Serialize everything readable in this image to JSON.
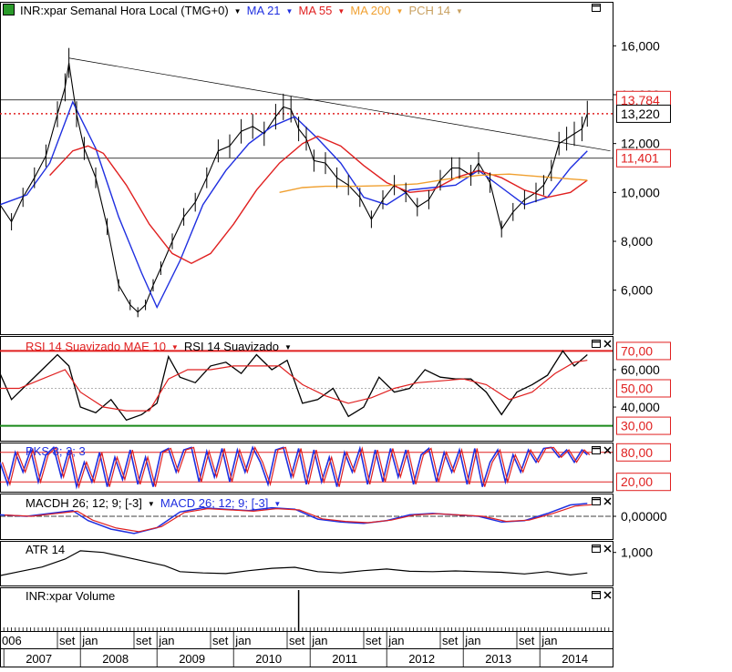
{
  "main_panel": {
    "legend": [
      {
        "text": "INR:xpar Semanal Hora Local (TMG+0)",
        "color": "#000000"
      },
      {
        "text": "MA 21",
        "color": "#1f2fe0"
      },
      {
        "text": "MA 55",
        "color": "#e02020"
      },
      {
        "text": "MA 200",
        "color": "#f0a030"
      },
      {
        "text": "PCH 14",
        "color": "#c8a060"
      }
    ],
    "price_ticks": [
      "16,000",
      "14,000",
      "12,000",
      "10,000",
      "8,000",
      "6,000"
    ],
    "price_tick_values": [
      16000,
      14000,
      12000,
      10000,
      8000,
      6000
    ],
    "boxed_labels": [
      {
        "text": "13,784",
        "value": 13784,
        "color": "#e02020"
      },
      {
        "text": "13,220",
        "value": 13220,
        "color": "#000000"
      },
      {
        "text": "11,401",
        "value": 11401,
        "color": "#e02020"
      }
    ],
    "hlines": [
      13784,
      11401
    ],
    "dotted_line": 13220,
    "trendline": {
      "from": {
        "x": 2007.85,
        "y": 15500
      },
      "to": {
        "x": 2014.92,
        "y": 11700
      }
    }
  },
  "rsi_panel": {
    "legend": [
      {
        "text": "RSI 14 Suavizado MAE 10",
        "color": "#e02020"
      },
      {
        "text": "RSI 14 Suavizado",
        "color": "#000000"
      }
    ],
    "ticks": [
      "70,00",
      "60,000",
      "50,00",
      "40,000",
      "30,00"
    ],
    "tick_values": [
      70,
      60,
      50,
      40,
      30
    ],
    "boxed_ticks": [
      true,
      false,
      true,
      false,
      true
    ]
  },
  "stoch_panel": {
    "legend": {
      "text": "PKS 8; 3; 3",
      "color": "#1f2fe0"
    },
    "ticks": [
      "80,00",
      "20,00"
    ],
    "tick_values": [
      80,
      20
    ]
  },
  "macd_panel": {
    "legend": [
      {
        "text": "MACDH 26; 12; 9; [-3]",
        "color": "#000000"
      },
      {
        "text": "MACD 26; 12; 9; [-3]",
        "color": "#1f2fe0"
      }
    ],
    "ticks": [
      "0,00000"
    ]
  },
  "atr_panel": {
    "legend": {
      "text": "ATR 14",
      "color": "#000000"
    },
    "ticks": [
      "1,000"
    ]
  },
  "volume_panel": {
    "legend": {
      "text": "INR:xpar Volume",
      "color": "#000000"
    }
  },
  "time_axis": {
    "month_labels": [
      {
        "text": "006",
        "x": 2006.95
      },
      {
        "text": "set",
        "x": 2007.7
      },
      {
        "text": "jan",
        "x": 2008.0
      },
      {
        "text": "set",
        "x": 2008.7
      },
      {
        "text": "jan",
        "x": 2009.0
      },
      {
        "text": "set",
        "x": 2009.7
      },
      {
        "text": "jan",
        "x": 2010.0
      },
      {
        "text": "set",
        "x": 2010.7
      },
      {
        "text": "jan",
        "x": 2011.0
      },
      {
        "text": "set",
        "x": 2011.7
      },
      {
        "text": "jan",
        "x": 2012.0
      },
      {
        "text": "set",
        "x": 2012.7
      },
      {
        "text": "jan",
        "x": 2013.0
      },
      {
        "text": "set",
        "x": 2013.7
      },
      {
        "text": "jan",
        "x": 2014.0
      }
    ],
    "year_labels": [
      {
        "text": "2007",
        "x": 2007.0
      },
      {
        "text": "2008",
        "x": 2008.0
      },
      {
        "text": "2009",
        "x": 2009.0
      },
      {
        "text": "2010",
        "x": 2010.0
      },
      {
        "text": "2011",
        "x": 2011.0
      },
      {
        "text": "2012",
        "x": 2012.0
      },
      {
        "text": "2013",
        "x": 2013.0
      },
      {
        "text": "2014",
        "x": 2014.0
      }
    ]
  },
  "icons": {
    "maximize": "maximize-icon",
    "close": "close-icon"
  },
  "chart_data": {
    "type": "line",
    "title": "INR:xpar Semanal Hora Local (TMG+0)",
    "xlabel": "",
    "ylabel": "",
    "xlim": [
      2006.95,
      2014.95
    ],
    "ylim": [
      4200,
      17800
    ],
    "grid": false,
    "legend_placement": "top-left",
    "series": [
      {
        "name": "INR:xpar",
        "color": "#000000",
        "x": [
          2006.95,
          2007.1,
          2007.25,
          2007.4,
          2007.55,
          2007.7,
          2007.8,
          2007.85,
          2007.95,
          2008.05,
          2008.2,
          2008.35,
          2008.5,
          2008.65,
          2008.75,
          2008.85,
          2008.95,
          2009.05,
          2009.2,
          2009.35,
          2009.5,
          2009.65,
          2009.8,
          2009.95,
          2010.1,
          2010.25,
          2010.4,
          2010.55,
          2010.65,
          2010.75,
          2010.85,
          2010.95,
          2011.05,
          2011.2,
          2011.35,
          2011.5,
          2011.65,
          2011.8,
          2011.95,
          2012.1,
          2012.25,
          2012.4,
          2012.55,
          2012.7,
          2012.85,
          2012.95,
          2013.1,
          2013.2,
          2013.35,
          2013.5,
          2013.65,
          2013.8,
          2013.95,
          2014.05,
          2014.15,
          2014.25,
          2014.35,
          2014.45,
          2014.55,
          2014.62
        ],
        "y": [
          9500,
          8800,
          9800,
          10600,
          11500,
          13200,
          14300,
          15300,
          13200,
          11800,
          10600,
          8600,
          6200,
          5400,
          5100,
          5400,
          6200,
          6900,
          8000,
          9000,
          9600,
          10600,
          11700,
          11900,
          12500,
          12700,
          12400,
          13100,
          13500,
          13400,
          12600,
          12200,
          11300,
          11200,
          10600,
          10300,
          9800,
          8900,
          9700,
          10300,
          10000,
          9400,
          9700,
          10500,
          11000,
          11000,
          10700,
          11200,
          10400,
          8500,
          9200,
          9700,
          10000,
          10300,
          10900,
          12000,
          12200,
          12400,
          12600,
          13220
        ]
      },
      {
        "name": "MA 21",
        "color": "#1f2fe0",
        "x": [
          2006.95,
          2007.3,
          2007.6,
          2007.9,
          2008.2,
          2008.5,
          2008.8,
          2009.0,
          2009.3,
          2009.6,
          2009.9,
          2010.2,
          2010.5,
          2010.8,
          2011.1,
          2011.4,
          2011.7,
          2012.0,
          2012.3,
          2012.6,
          2012.9,
          2013.2,
          2013.5,
          2013.8,
          2014.1,
          2014.4,
          2014.62
        ],
        "y": [
          9500,
          9900,
          11200,
          13700,
          11800,
          9000,
          6700,
          5300,
          7200,
          9500,
          10900,
          12000,
          12700,
          13100,
          12200,
          11200,
          9800,
          9500,
          10100,
          10200,
          10300,
          10900,
          10200,
          9500,
          9800,
          11000,
          11700
        ]
      },
      {
        "name": "MA 55",
        "color": "#e02020",
        "x": [
          2007.6,
          2007.9,
          2008.1,
          2008.3,
          2008.6,
          2008.9,
          2009.2,
          2009.45,
          2009.7,
          2010.0,
          2010.3,
          2010.6,
          2010.9,
          2011.1,
          2011.4,
          2011.7,
          2012.0,
          2012.3,
          2012.6,
          2012.9,
          2013.2,
          2013.5,
          2013.8,
          2014.1,
          2014.4,
          2014.62
        ],
        "y": [
          10700,
          11700,
          11900,
          11600,
          10300,
          8700,
          7500,
          7100,
          7500,
          8700,
          10100,
          11200,
          12000,
          12300,
          11900,
          11100,
          10400,
          10000,
          10100,
          10600,
          10900,
          10600,
          10100,
          9800,
          10000,
          10500
        ]
      },
      {
        "name": "MA 200",
        "color": "#f0a030",
        "x": [
          2010.6,
          2010.9,
          2011.2,
          2011.6,
          2012.0,
          2012.4,
          2012.8,
          2013.2,
          2013.6,
          2014.0,
          2014.4,
          2014.62
        ],
        "y": [
          10000,
          10200,
          10250,
          10250,
          10280,
          10350,
          10550,
          10700,
          10750,
          10650,
          10550,
          10500
        ]
      }
    ],
    "indicators": {
      "rsi": {
        "x": [
          2006.95,
          2007.1,
          2007.3,
          2007.5,
          2007.7,
          2007.85,
          2008.0,
          2008.2,
          2008.4,
          2008.6,
          2008.8,
          2009.0,
          2009.15,
          2009.3,
          2009.5,
          2009.7,
          2009.9,
          2010.1,
          2010.3,
          2010.5,
          2010.7,
          2010.9,
          2011.1,
          2011.3,
          2011.5,
          2011.7,
          2011.9,
          2012.1,
          2012.3,
          2012.5,
          2012.7,
          2012.9,
          2013.1,
          2013.3,
          2013.5,
          2013.7,
          2013.9,
          2014.1,
          2014.3,
          2014.45,
          2014.62
        ],
        "y": [
          58,
          44,
          52,
          60,
          68,
          62,
          40,
          37,
          44,
          33,
          36,
          42,
          67,
          56,
          53,
          62,
          64,
          58,
          68,
          60,
          65,
          42,
          44,
          50,
          35,
          40,
          56,
          48,
          50,
          60,
          56,
          55,
          55,
          48,
          36,
          48,
          52,
          57,
          70,
          62,
          68
        ]
      },
      "rsi_mae10": {
        "x": [
          2006.95,
          2007.2,
          2007.5,
          2007.8,
          2008.0,
          2008.3,
          2008.6,
          2008.9,
          2009.15,
          2009.4,
          2009.7,
          2010.0,
          2010.3,
          2010.6,
          2010.9,
          2011.2,
          2011.5,
          2011.8,
          2012.1,
          2012.4,
          2012.7,
          2013.0,
          2013.3,
          2013.6,
          2013.9,
          2014.2,
          2014.45,
          2014.62
        ],
        "y": [
          50,
          50,
          55,
          60,
          48,
          40,
          38,
          38,
          55,
          60,
          60,
          62,
          62,
          62,
          52,
          46,
          42,
          45,
          50,
          53,
          54,
          55,
          52,
          44,
          48,
          58,
          64,
          65
        ]
      },
      "stoch": {
        "x": [
          2006.95,
          2007.05,
          2007.15,
          2007.25,
          2007.35,
          2007.45,
          2007.55,
          2007.65,
          2007.75,
          2007.85,
          2007.95,
          2008.05,
          2008.15,
          2008.25,
          2008.35,
          2008.45,
          2008.55,
          2008.65,
          2008.75,
          2008.85,
          2008.95,
          2009.05,
          2009.15,
          2009.25,
          2009.35,
          2009.45,
          2009.55,
          2009.65,
          2009.75,
          2009.85,
          2009.95,
          2010.05,
          2010.15,
          2010.25,
          2010.35,
          2010.45,
          2010.55,
          2010.65,
          2010.75,
          2010.85,
          2010.95,
          2011.05,
          2011.15,
          2011.25,
          2011.35,
          2011.45,
          2011.55,
          2011.65,
          2011.75,
          2011.85,
          2011.95,
          2012.05,
          2012.15,
          2012.25,
          2012.35,
          2012.45,
          2012.55,
          2012.65,
          2012.75,
          2012.85,
          2012.95,
          2013.05,
          2013.15,
          2013.25,
          2013.35,
          2013.45,
          2013.55,
          2013.65,
          2013.75,
          2013.85,
          2013.95,
          2014.05,
          2014.15,
          2014.25,
          2014.35,
          2014.45,
          2014.55,
          2014.62
        ],
        "y": [
          60,
          15,
          80,
          40,
          85,
          20,
          75,
          90,
          30,
          85,
          10,
          60,
          20,
          80,
          10,
          70,
          25,
          85,
          15,
          70,
          10,
          80,
          88,
          40,
          85,
          90,
          20,
          82,
          30,
          88,
          20,
          85,
          40,
          90,
          60,
          15,
          85,
          90,
          30,
          88,
          15,
          85,
          20,
          70,
          10,
          80,
          40,
          88,
          15,
          85,
          20,
          88,
          30,
          85,
          15,
          75,
          88,
          20,
          80,
          40,
          85,
          15,
          88,
          10,
          60,
          85,
          20,
          75,
          40,
          85,
          60,
          88,
          90,
          70,
          85,
          60,
          85,
          75
        ]
      },
      "macd": {
        "x": [
          2006.95,
          2007.3,
          2007.6,
          2007.9,
          2008.1,
          2008.4,
          2008.7,
          2009.0,
          2009.3,
          2009.6,
          2009.9,
          2010.2,
          2010.5,
          2010.8,
          2011.1,
          2011.4,
          2011.7,
          2012.0,
          2012.3,
          2012.6,
          2012.9,
          2013.2,
          2013.5,
          2013.8,
          2014.1,
          2014.4,
          2014.62
        ],
        "y": [
          0.1,
          0.0,
          0.2,
          0.4,
          -0.3,
          -0.9,
          -1.2,
          -0.8,
          0.3,
          0.6,
          0.5,
          0.4,
          0.6,
          0.5,
          -0.2,
          -0.4,
          -0.5,
          -0.3,
          0.1,
          0.2,
          0.1,
          0.0,
          -0.4,
          -0.3,
          0.2,
          0.8,
          0.9
        ]
      },
      "atr": {
        "x": [
          2006.95,
          2007.2,
          2007.5,
          2007.8,
          2008.0,
          2008.3,
          2008.6,
          2008.9,
          2009.1,
          2009.3,
          2009.6,
          2009.9,
          2010.2,
          2010.5,
          2010.8,
          2011.1,
          2011.4,
          2011.7,
          2012.0,
          2012.3,
          2012.6,
          2012.9,
          2013.2,
          2013.5,
          2013.8,
          2014.1,
          2014.4,
          2014.62
        ],
        "y": [
          300,
          420,
          560,
          800,
          1050,
          1000,
          850,
          700,
          600,
          420,
          380,
          360,
          450,
          520,
          550,
          420,
          380,
          450,
          500,
          430,
          420,
          440,
          420,
          400,
          350,
          420,
          320,
          380
        ]
      }
    }
  }
}
